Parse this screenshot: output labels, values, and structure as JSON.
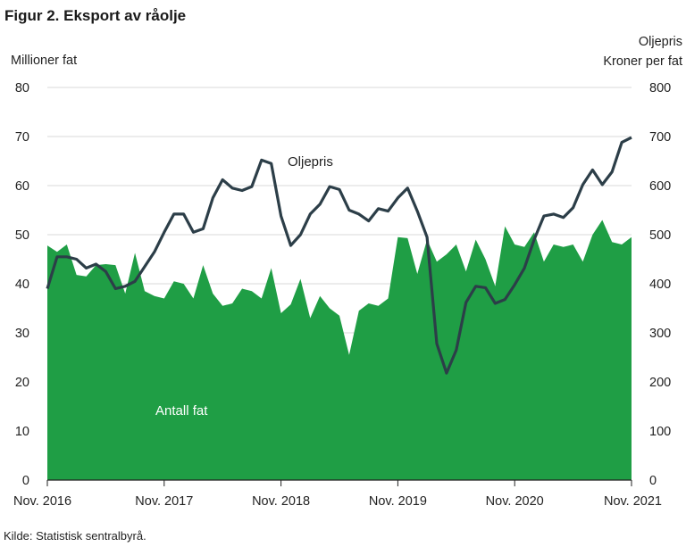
{
  "figure": {
    "title": "Figur 2. Eksport av råolje",
    "source": "Kilde: Statistisk sentralbyrå."
  },
  "chart_data": {
    "type": "area+line",
    "x_ticks": [
      "Nov. 2016",
      "Nov. 2017",
      "Nov. 2018",
      "Nov. 2019",
      "Nov. 2020",
      "Nov. 2021"
    ],
    "x_start": "Nov. 2016",
    "x_end": "Nov. 2021",
    "y_left": {
      "label": "Millioner fat",
      "lim": [
        0,
        80
      ],
      "ticks": [
        0,
        10,
        20,
        30,
        40,
        50,
        60,
        70,
        80
      ]
    },
    "y_right": {
      "label_line1": "Oljepris",
      "label_line2": "Kroner per fat",
      "lim": [
        0,
        800
      ],
      "ticks": [
        0,
        100,
        200,
        300,
        400,
        500,
        600,
        700,
        800
      ]
    },
    "grid": "horizontal",
    "series": [
      {
        "name": "Antall fat",
        "type": "area",
        "axis": "left",
        "color": "#1f9e45",
        "values": [
          47.8,
          46.5,
          48.0,
          41.8,
          41.5,
          43.8,
          44.0,
          43.8,
          38.0,
          46.3,
          38.5,
          37.5,
          37.0,
          40.5,
          40.0,
          37.0,
          43.8,
          38.0,
          35.5,
          36.0,
          39.0,
          38.5,
          37.0,
          43.2,
          34.0,
          35.8,
          41.0,
          33.0,
          37.5,
          35.0,
          33.5,
          25.5,
          34.5,
          36.0,
          35.5,
          37.0,
          49.5,
          49.3,
          42.0,
          49.0,
          44.5,
          46.0,
          48.0,
          42.5,
          49.0,
          45.0,
          39.5,
          51.7,
          48.0,
          47.5,
          50.5,
          44.5,
          48.0,
          47.5,
          48.0,
          44.5,
          50.0,
          53.0,
          48.5,
          48.0,
          49.5
        ]
      },
      {
        "name": "Oljepris",
        "type": "line",
        "axis": "right",
        "color": "#2c3e48",
        "values": [
          390,
          455,
          455,
          450,
          432,
          440,
          425,
          390,
          395,
          405,
          435,
          465,
          505,
          542,
          542,
          505,
          512,
          575,
          612,
          595,
          590,
          598,
          652,
          645,
          538,
          478,
          500,
          542,
          562,
          598,
          592,
          550,
          542,
          528,
          553,
          548,
          575,
          595,
          548,
          495,
          278,
          218,
          265,
          362,
          395,
          392,
          360,
          368,
          398,
          432,
          490,
          538,
          542,
          535,
          555,
          602,
          632,
          602,
          628,
          688,
          698
        ]
      }
    ],
    "annotations": [
      {
        "text": "Oljepris",
        "series": "Oljepris"
      },
      {
        "text": "Antall fat",
        "series": "Antall fat"
      }
    ]
  }
}
